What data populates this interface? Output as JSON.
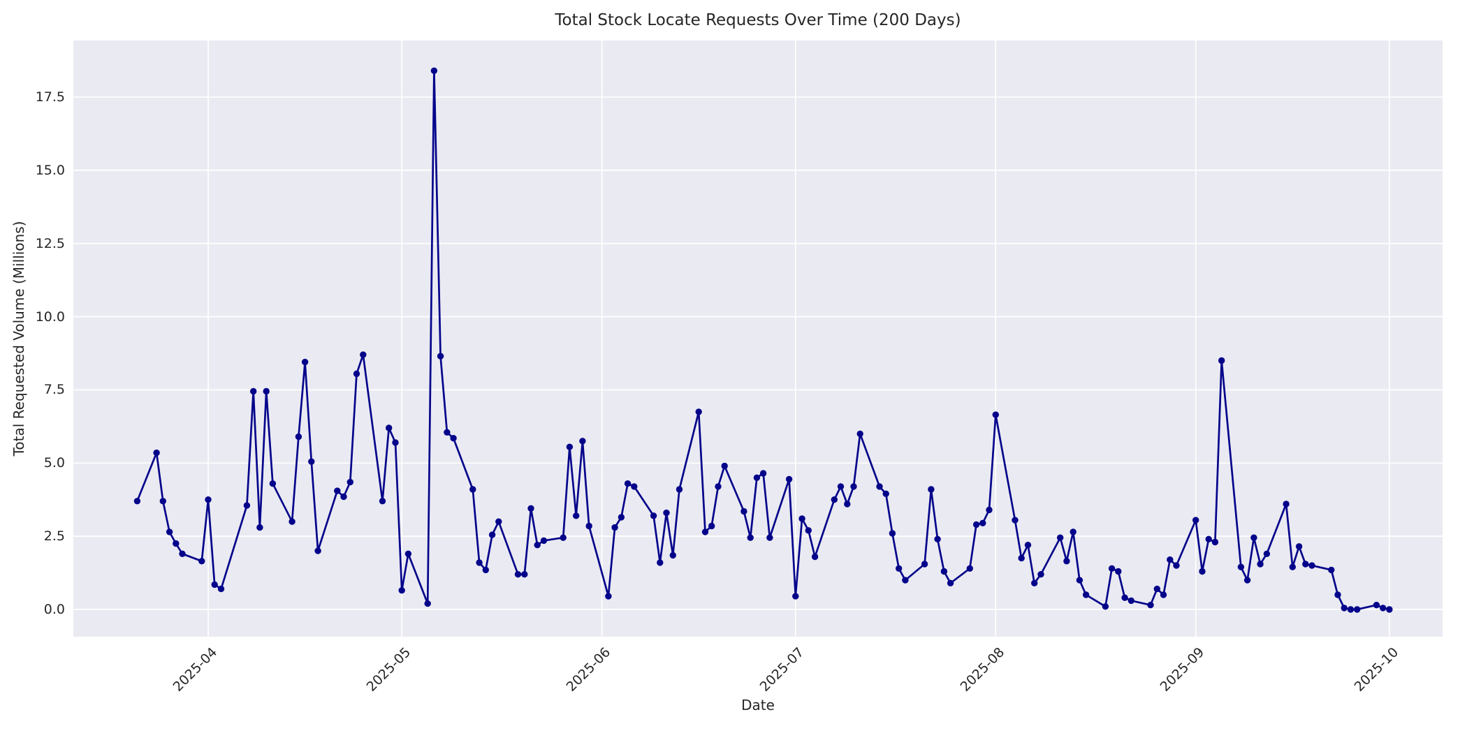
{
  "chart_data": {
    "type": "line",
    "title": "Total Stock Locate Requests Over Time (200 Days)",
    "xlabel": "Date",
    "ylabel": "Total Requested Volume (Millions)",
    "grid": true,
    "legend": false,
    "background_color": "#eaeaf2",
    "gridline_color": "#ffffff",
    "line_color": "#04048b",
    "marker": "circle",
    "y_ticks": [
      "0.0",
      "2.5",
      "5.0",
      "7.5",
      "10.0",
      "12.5",
      "15.0",
      "17.5"
    ],
    "y_tick_values": [
      0,
      2.5,
      5,
      7.5,
      10,
      12.5,
      15,
      17.5
    ],
    "x_ticks": [
      "2025-04",
      "2025-05",
      "2025-06",
      "2025-07",
      "2025-08",
      "2025-09",
      "2025-10"
    ],
    "ylim": [
      -0.93,
      19.4
    ],
    "xlim": [
      "2025-03-11",
      "2025-10-09"
    ],
    "series": [
      {
        "name": "Total Stock Locate Requests",
        "points": [
          [
            "2025-03-21",
            3.7
          ],
          [
            "2025-03-24",
            5.35
          ],
          [
            "2025-03-25",
            3.7
          ],
          [
            "2025-03-26",
            2.65
          ],
          [
            "2025-03-27",
            2.25
          ],
          [
            "2025-03-28",
            1.9
          ],
          [
            "2025-03-31",
            1.65
          ],
          [
            "2025-04-01",
            3.75
          ],
          [
            "2025-04-02",
            0.85
          ],
          [
            "2025-04-03",
            0.7
          ],
          [
            "2025-04-07",
            3.55
          ],
          [
            "2025-04-08",
            7.45
          ],
          [
            "2025-04-09",
            2.8
          ],
          [
            "2025-04-10",
            7.45
          ],
          [
            "2025-04-11",
            4.3
          ],
          [
            "2025-04-14",
            3.0
          ],
          [
            "2025-04-15",
            5.9
          ],
          [
            "2025-04-16",
            8.45
          ],
          [
            "2025-04-17",
            5.05
          ],
          [
            "2025-04-18",
            2.0
          ],
          [
            "2025-04-21",
            4.05
          ],
          [
            "2025-04-22",
            3.85
          ],
          [
            "2025-04-23",
            4.35
          ],
          [
            "2025-04-24",
            8.05
          ],
          [
            "2025-04-25",
            8.7
          ],
          [
            "2025-04-28",
            3.7
          ],
          [
            "2025-04-29",
            6.2
          ],
          [
            "2025-04-30",
            5.7
          ],
          [
            "2025-05-01",
            0.65
          ],
          [
            "2025-05-02",
            1.9
          ],
          [
            "2025-05-05",
            0.2
          ],
          [
            "2025-05-06",
            18.4
          ],
          [
            "2025-05-07",
            8.65
          ],
          [
            "2025-05-08",
            6.05
          ],
          [
            "2025-05-09",
            5.85
          ],
          [
            "2025-05-12",
            4.1
          ],
          [
            "2025-05-13",
            1.6
          ],
          [
            "2025-05-14",
            1.35
          ],
          [
            "2025-05-15",
            2.55
          ],
          [
            "2025-05-16",
            3.0
          ],
          [
            "2025-05-19",
            1.2
          ],
          [
            "2025-05-20",
            1.2
          ],
          [
            "2025-05-21",
            3.45
          ],
          [
            "2025-05-22",
            2.2
          ],
          [
            "2025-05-23",
            2.35
          ],
          [
            "2025-05-26",
            2.45
          ],
          [
            "2025-05-27",
            5.55
          ],
          [
            "2025-05-28",
            3.2
          ],
          [
            "2025-05-29",
            5.75
          ],
          [
            "2025-05-30",
            2.85
          ],
          [
            "2025-06-02",
            0.45
          ],
          [
            "2025-06-03",
            2.8
          ],
          [
            "2025-06-04",
            3.15
          ],
          [
            "2025-06-05",
            4.3
          ],
          [
            "2025-06-06",
            4.2
          ],
          [
            "2025-06-09",
            3.2
          ],
          [
            "2025-06-10",
            1.6
          ],
          [
            "2025-06-11",
            3.3
          ],
          [
            "2025-06-12",
            1.85
          ],
          [
            "2025-06-13",
            4.1
          ],
          [
            "2025-06-16",
            6.75
          ],
          [
            "2025-06-17",
            2.65
          ],
          [
            "2025-06-18",
            2.85
          ],
          [
            "2025-06-19",
            4.2
          ],
          [
            "2025-06-20",
            4.9
          ],
          [
            "2025-06-23",
            3.35
          ],
          [
            "2025-06-24",
            2.45
          ],
          [
            "2025-06-25",
            4.5
          ],
          [
            "2025-06-26",
            4.65
          ],
          [
            "2025-06-27",
            2.45
          ],
          [
            "2025-06-30",
            4.45
          ],
          [
            "2025-07-01",
            0.45
          ],
          [
            "2025-07-02",
            3.1
          ],
          [
            "2025-07-03",
            2.7
          ],
          [
            "2025-07-04",
            1.8
          ],
          [
            "2025-07-07",
            3.75
          ],
          [
            "2025-07-08",
            4.2
          ],
          [
            "2025-07-09",
            3.6
          ],
          [
            "2025-07-10",
            4.2
          ],
          [
            "2025-07-11",
            6.0
          ],
          [
            "2025-07-14",
            4.2
          ],
          [
            "2025-07-15",
            3.95
          ],
          [
            "2025-07-16",
            2.6
          ],
          [
            "2025-07-17",
            1.4
          ],
          [
            "2025-07-18",
            1.0
          ],
          [
            "2025-07-21",
            1.55
          ],
          [
            "2025-07-22",
            4.1
          ],
          [
            "2025-07-23",
            2.4
          ],
          [
            "2025-07-24",
            1.3
          ],
          [
            "2025-07-25",
            0.9
          ],
          [
            "2025-07-28",
            1.4
          ],
          [
            "2025-07-29",
            2.9
          ],
          [
            "2025-07-30",
            2.95
          ],
          [
            "2025-07-31",
            3.4
          ],
          [
            "2025-08-01",
            6.65
          ],
          [
            "2025-08-04",
            3.05
          ],
          [
            "2025-08-05",
            1.75
          ],
          [
            "2025-08-06",
            2.2
          ],
          [
            "2025-08-07",
            0.9
          ],
          [
            "2025-08-08",
            1.2
          ],
          [
            "2025-08-11",
            2.45
          ],
          [
            "2025-08-12",
            1.65
          ],
          [
            "2025-08-13",
            2.65
          ],
          [
            "2025-08-14",
            1.0
          ],
          [
            "2025-08-15",
            0.5
          ],
          [
            "2025-08-18",
            0.1
          ],
          [
            "2025-08-19",
            1.4
          ],
          [
            "2025-08-20",
            1.3
          ],
          [
            "2025-08-21",
            0.4
          ],
          [
            "2025-08-22",
            0.3
          ],
          [
            "2025-08-25",
            0.15
          ],
          [
            "2025-08-26",
            0.7
          ],
          [
            "2025-08-27",
            0.5
          ],
          [
            "2025-08-28",
            1.7
          ],
          [
            "2025-08-29",
            1.5
          ],
          [
            "2025-09-01",
            3.05
          ],
          [
            "2025-09-02",
            1.3
          ],
          [
            "2025-09-03",
            2.4
          ],
          [
            "2025-09-04",
            2.3
          ],
          [
            "2025-09-05",
            8.5
          ],
          [
            "2025-09-08",
            1.45
          ],
          [
            "2025-09-09",
            1.0
          ],
          [
            "2025-09-10",
            2.45
          ],
          [
            "2025-09-11",
            1.55
          ],
          [
            "2025-09-12",
            1.9
          ],
          [
            "2025-09-15",
            3.6
          ],
          [
            "2025-09-16",
            1.45
          ],
          [
            "2025-09-17",
            2.15
          ],
          [
            "2025-09-18",
            1.55
          ],
          [
            "2025-09-19",
            1.5
          ],
          [
            "2025-09-22",
            1.35
          ],
          [
            "2025-09-23",
            0.5
          ],
          [
            "2025-09-24",
            0.05
          ],
          [
            "2025-09-25",
            0.0
          ],
          [
            "2025-09-26",
            0.0
          ],
          [
            "2025-09-29",
            0.15
          ],
          [
            "2025-09-30",
            0.05
          ],
          [
            "2025-10-01",
            0.0
          ]
        ]
      }
    ]
  }
}
